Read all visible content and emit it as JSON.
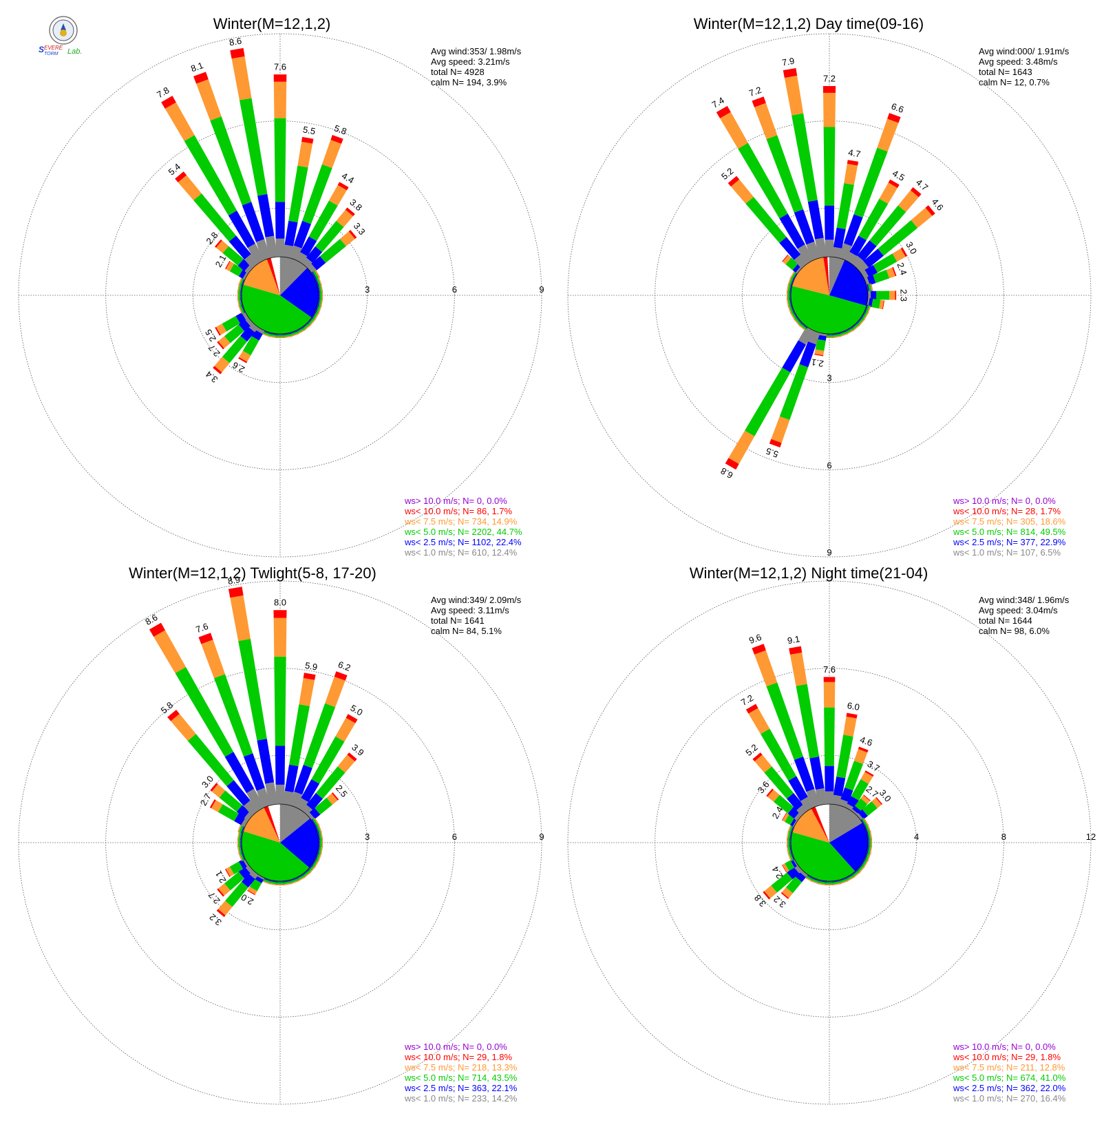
{
  "colors": {
    "ws_gt10": "#9400d3",
    "ws_lt10": "#ff0000",
    "ws_lt75": "#ff9933",
    "ws_lt5": "#00cc00",
    "ws_lt25": "#0000ff",
    "ws_lt1": "#888888",
    "grid": "#555555"
  },
  "logo_text": "Severe Storm Lab.",
  "chart_data": [
    {
      "type": "windrose",
      "title": "Winter(M=12,1,2)",
      "stats": [
        "Avg wind:353/ 1.98m/s",
        "Avg speed: 3.21m/s",
        "total N=        4928",
        "calm N=     194,   3.9%"
      ],
      "ring_labels": [
        "3",
        "6",
        "9"
      ],
      "rmax": 9,
      "label_pos": "east",
      "center_pie": [
        {
          "class": "ws_lt1",
          "percent": 12.4
        },
        {
          "class": "ws_lt25",
          "percent": 22.4
        },
        {
          "class": "ws_lt5",
          "percent": 44.7
        },
        {
          "class": "ws_lt75",
          "percent": 14.9
        },
        {
          "class": "ws_lt10",
          "percent": 1.7
        },
        {
          "class": "ws_gt10",
          "percent": 0.0
        }
      ],
      "legend": [
        {
          "class": "ws_gt10",
          "text": "ws> 10.0 m/s; N=      0,   0.0%"
        },
        {
          "class": "ws_lt10",
          "text": "ws< 10.0 m/s; N=     86,   1.7%"
        },
        {
          "class": "ws_lt75",
          "text": "ws<  7.5 m/s; N=    734, 14.9%"
        },
        {
          "class": "ws_lt5",
          "text": "ws<  5.0 m/s; N=  2202, 44.7%"
        },
        {
          "class": "ws_lt25",
          "text": "ws<  2.5 m/s; N=  1102, 22.4%"
        },
        {
          "class": "ws_lt1",
          "text": "ws<  1.0 m/s; N=    610, 12.4%"
        }
      ],
      "sectors": [
        {
          "dir": 0,
          "value": 7.6,
          "label": "7.6"
        },
        {
          "dir": 10,
          "value": 5.5,
          "label": "5.5"
        },
        {
          "dir": 20,
          "value": 5.8,
          "label": "5.8"
        },
        {
          "dir": 30,
          "value": 4.4,
          "label": "4.4"
        },
        {
          "dir": 40,
          "value": 3.8,
          "label": "3.8"
        },
        {
          "dir": 50,
          "value": 3.3,
          "label": "3.3"
        },
        {
          "dir": 60,
          "value": 1.5,
          "label": ""
        },
        {
          "dir": 70,
          "value": 1.1,
          "label": ""
        },
        {
          "dir": 80,
          "value": 0.9,
          "label": ""
        },
        {
          "dir": 90,
          "value": 0.9,
          "label": ""
        },
        {
          "dir": 100,
          "value": 0.8,
          "label": ""
        },
        {
          "dir": 110,
          "value": 0.8,
          "label": ""
        },
        {
          "dir": 120,
          "value": 0.8,
          "label": ""
        },
        {
          "dir": 130,
          "value": 0.8,
          "label": ""
        },
        {
          "dir": 140,
          "value": 0.8,
          "label": ""
        },
        {
          "dir": 150,
          "value": 0.8,
          "label": ""
        },
        {
          "dir": 160,
          "value": 0.8,
          "label": ""
        },
        {
          "dir": 170,
          "value": 0.8,
          "label": ""
        },
        {
          "dir": 180,
          "value": 0.8,
          "label": ""
        },
        {
          "dir": 190,
          "value": 0.9,
          "label": ""
        },
        {
          "dir": 200,
          "value": 1.1,
          "label": ""
        },
        {
          "dir": 210,
          "value": 2.6,
          "label": "2.6"
        },
        {
          "dir": 220,
          "value": 3.4,
          "label": "3.4"
        },
        {
          "dir": 230,
          "value": 2.7,
          "label": "2.7"
        },
        {
          "dir": 240,
          "value": 2.5,
          "label": "2.5"
        },
        {
          "dir": 250,
          "value": 1.3,
          "label": ""
        },
        {
          "dir": 260,
          "value": 1.0,
          "label": ""
        },
        {
          "dir": 270,
          "value": 1.1,
          "label": ""
        },
        {
          "dir": 280,
          "value": 1.1,
          "label": ""
        },
        {
          "dir": 290,
          "value": 1.3,
          "label": ""
        },
        {
          "dir": 300,
          "value": 2.1,
          "label": "2.1"
        },
        {
          "dir": 310,
          "value": 2.8,
          "label": "2.8"
        },
        {
          "dir": 320,
          "value": 5.4,
          "label": "5.4"
        },
        {
          "dir": 330,
          "value": 7.8,
          "label": "7.8"
        },
        {
          "dir": 340,
          "value": 8.1,
          "label": "8.1"
        },
        {
          "dir": 350,
          "value": 8.6,
          "label": "8.6"
        }
      ]
    },
    {
      "type": "windrose",
      "title": "Winter(M=12,1,2) Day time(09-16)",
      "stats": [
        "Avg wind:000/ 1.91m/s",
        "Avg speed: 3.48m/s",
        "total N=        1643",
        "calm N=      12,   0.7%"
      ],
      "ring_labels": [
        "3",
        "6",
        "9"
      ],
      "rmax": 9,
      "label_pos": "south",
      "center_pie": [
        {
          "class": "ws_lt1",
          "percent": 6.5
        },
        {
          "class": "ws_lt25",
          "percent": 22.9
        },
        {
          "class": "ws_lt5",
          "percent": 49.5
        },
        {
          "class": "ws_lt75",
          "percent": 18.6
        },
        {
          "class": "ws_lt10",
          "percent": 1.7
        },
        {
          "class": "ws_gt10",
          "percent": 0.0
        }
      ],
      "legend": [
        {
          "class": "ws_gt10",
          "text": "ws> 10.0 m/s; N=      0,   0.0%"
        },
        {
          "class": "ws_lt10",
          "text": "ws< 10.0 m/s; N=     28,   1.7%"
        },
        {
          "class": "ws_lt75",
          "text": "ws<  7.5 m/s; N=    305, 18.6%"
        },
        {
          "class": "ws_lt5",
          "text": "ws<  5.0 m/s; N=    814, 49.5%"
        },
        {
          "class": "ws_lt25",
          "text": "ws<  2.5 m/s; N=    377, 22.9%"
        },
        {
          "class": "ws_lt1",
          "text": "ws<  1.0 m/s; N=    107,   6.5%"
        }
      ],
      "sectors": [
        {
          "dir": 0,
          "value": 7.2,
          "label": "7.2"
        },
        {
          "dir": 10,
          "value": 4.7,
          "label": "4.7"
        },
        {
          "dir": 20,
          "value": 6.6,
          "label": "6.6"
        },
        {
          "dir": 30,
          "value": 4.5,
          "label": "4.5"
        },
        {
          "dir": 40,
          "value": 4.7,
          "label": "4.7"
        },
        {
          "dir": 50,
          "value": 4.6,
          "label": "4.6"
        },
        {
          "dir": 60,
          "value": 3.0,
          "label": "3.0"
        },
        {
          "dir": 70,
          "value": 2.4,
          "label": "2.4"
        },
        {
          "dir": 80,
          "value": 1.5,
          "label": ""
        },
        {
          "dir": 90,
          "value": 2.3,
          "label": "2.3"
        },
        {
          "dir": 100,
          "value": 1.9,
          "label": ""
        },
        {
          "dir": 110,
          "value": 1.4,
          "label": ""
        },
        {
          "dir": 120,
          "value": 1.2,
          "label": ""
        },
        {
          "dir": 130,
          "value": 1.1,
          "label": ""
        },
        {
          "dir": 140,
          "value": 1.0,
          "label": ""
        },
        {
          "dir": 150,
          "value": 0.9,
          "label": ""
        },
        {
          "dir": 160,
          "value": 0.9,
          "label": ""
        },
        {
          "dir": 170,
          "value": 1.0,
          "label": ""
        },
        {
          "dir": 180,
          "value": 1.0,
          "label": ""
        },
        {
          "dir": 190,
          "value": 2.1,
          "label": "2.1"
        },
        {
          "dir": 200,
          "value": 5.5,
          "label": "5.5"
        },
        {
          "dir": 210,
          "value": 6.8,
          "label": "6.8"
        },
        {
          "dir": 220,
          "value": 1.4,
          "label": ""
        },
        {
          "dir": 230,
          "value": 0.9,
          "label": ""
        },
        {
          "dir": 240,
          "value": 0.8,
          "label": ""
        },
        {
          "dir": 250,
          "value": 0.7,
          "label": ""
        },
        {
          "dir": 260,
          "value": 0.7,
          "label": ""
        },
        {
          "dir": 270,
          "value": 0.7,
          "label": ""
        },
        {
          "dir": 280,
          "value": 0.8,
          "label": ""
        },
        {
          "dir": 290,
          "value": 0.9,
          "label": ""
        },
        {
          "dir": 300,
          "value": 1.4,
          "label": ""
        },
        {
          "dir": 310,
          "value": 2.0,
          "label": ""
        },
        {
          "dir": 320,
          "value": 5.2,
          "label": "5.2"
        },
        {
          "dir": 330,
          "value": 7.4,
          "label": "7.4"
        },
        {
          "dir": 340,
          "value": 7.2,
          "label": "7.2"
        },
        {
          "dir": 350,
          "value": 7.9,
          "label": "7.9"
        }
      ]
    },
    {
      "type": "windrose",
      "title": "Winter(M=12,1,2) Twlight(5-8, 17-20)",
      "stats": [
        "Avg wind:349/ 2.09m/s",
        "Avg speed: 3.11m/s",
        "total N=        1641",
        "calm N=      84,   5.1%"
      ],
      "ring_labels": [
        "3",
        "6",
        "9"
      ],
      "rmax": 9,
      "label_pos": "east",
      "center_pie": [
        {
          "class": "ws_lt1",
          "percent": 14.2
        },
        {
          "class": "ws_lt25",
          "percent": 22.1
        },
        {
          "class": "ws_lt5",
          "percent": 43.5
        },
        {
          "class": "ws_lt75",
          "percent": 13.3
        },
        {
          "class": "ws_lt10",
          "percent": 1.8
        },
        {
          "class": "ws_gt10",
          "percent": 0.0
        }
      ],
      "legend": [
        {
          "class": "ws_gt10",
          "text": "ws> 10.0 m/s; N=      0,   0.0%"
        },
        {
          "class": "ws_lt10",
          "text": "ws< 10.0 m/s; N=     29,   1.8%"
        },
        {
          "class": "ws_lt75",
          "text": "ws<  7.5 m/s; N=    218, 13.3%"
        },
        {
          "class": "ws_lt5",
          "text": "ws<  5.0 m/s; N=    714, 43.5%"
        },
        {
          "class": "ws_lt25",
          "text": "ws<  2.5 m/s; N=    363, 22.1%"
        },
        {
          "class": "ws_lt1",
          "text": "ws<  1.0 m/s; N=    233, 14.2%"
        }
      ],
      "sectors": [
        {
          "dir": 0,
          "value": 8.0,
          "label": "8.0"
        },
        {
          "dir": 10,
          "value": 5.9,
          "label": "5.9"
        },
        {
          "dir": 20,
          "value": 6.2,
          "label": "6.2"
        },
        {
          "dir": 30,
          "value": 5.0,
          "label": "5.0"
        },
        {
          "dir": 40,
          "value": 3.9,
          "label": "3.9"
        },
        {
          "dir": 50,
          "value": 2.5,
          "label": "2.5"
        },
        {
          "dir": 60,
          "value": 1.3,
          "label": ""
        },
        {
          "dir": 70,
          "value": 0.9,
          "label": ""
        },
        {
          "dir": 80,
          "value": 0.8,
          "label": ""
        },
        {
          "dir": 90,
          "value": 0.9,
          "label": ""
        },
        {
          "dir": 100,
          "value": 0.8,
          "label": ""
        },
        {
          "dir": 110,
          "value": 0.8,
          "label": ""
        },
        {
          "dir": 120,
          "value": 0.8,
          "label": ""
        },
        {
          "dir": 130,
          "value": 0.8,
          "label": ""
        },
        {
          "dir": 140,
          "value": 0.8,
          "label": ""
        },
        {
          "dir": 150,
          "value": 0.8,
          "label": ""
        },
        {
          "dir": 160,
          "value": 0.8,
          "label": ""
        },
        {
          "dir": 170,
          "value": 0.8,
          "label": ""
        },
        {
          "dir": 180,
          "value": 0.9,
          "label": ""
        },
        {
          "dir": 190,
          "value": 1.0,
          "label": ""
        },
        {
          "dir": 200,
          "value": 1.2,
          "label": ""
        },
        {
          "dir": 210,
          "value": 2.0,
          "label": "2.0"
        },
        {
          "dir": 220,
          "value": 3.2,
          "label": "3.2"
        },
        {
          "dir": 230,
          "value": 2.7,
          "label": "2.7"
        },
        {
          "dir": 240,
          "value": 2.1,
          "label": "2.1"
        },
        {
          "dir": 250,
          "value": 1.2,
          "label": ""
        },
        {
          "dir": 260,
          "value": 1.0,
          "label": ""
        },
        {
          "dir": 270,
          "value": 1.1,
          "label": ""
        },
        {
          "dir": 280,
          "value": 1.2,
          "label": ""
        },
        {
          "dir": 290,
          "value": 1.5,
          "label": ""
        },
        {
          "dir": 300,
          "value": 2.7,
          "label": "2.7"
        },
        {
          "dir": 310,
          "value": 3.0,
          "label": "3.0"
        },
        {
          "dir": 320,
          "value": 5.8,
          "label": "5.8"
        },
        {
          "dir": 330,
          "value": 8.6,
          "label": "8.6"
        },
        {
          "dir": 340,
          "value": 7.6,
          "label": "7.6"
        },
        {
          "dir": 350,
          "value": 8.9,
          "label": "8.9"
        }
      ]
    },
    {
      "type": "windrose",
      "title": "Winter(M=12,1,2) Night time(21-04)",
      "stats": [
        "Avg wind:348/ 1.96m/s",
        "Avg speed: 3.04m/s",
        "total N=        1644",
        "calm N=      98,   6.0%"
      ],
      "ring_labels": [
        "4",
        "8",
        "12"
      ],
      "rmax": 12,
      "label_pos": "east",
      "center_pie": [
        {
          "class": "ws_lt1",
          "percent": 16.4
        },
        {
          "class": "ws_lt25",
          "percent": 22.0
        },
        {
          "class": "ws_lt5",
          "percent": 41.0
        },
        {
          "class": "ws_lt75",
          "percent": 12.8
        },
        {
          "class": "ws_lt10",
          "percent": 1.8
        },
        {
          "class": "ws_gt10",
          "percent": 0.0
        }
      ],
      "legend": [
        {
          "class": "ws_gt10",
          "text": "ws> 10.0 m/s; N=      0,   0.0%"
        },
        {
          "class": "ws_lt10",
          "text": "ws< 10.0 m/s; N=     29,   1.8%"
        },
        {
          "class": "ws_lt75",
          "text": "ws<  7.5 m/s; N=    211, 12.8%"
        },
        {
          "class": "ws_lt5",
          "text": "ws<  5.0 m/s; N=    674, 41.0%"
        },
        {
          "class": "ws_lt25",
          "text": "ws<  2.5 m/s; N=    362, 22.0%"
        },
        {
          "class": "ws_lt1",
          "text": "ws<  1.0 m/s; N=    270, 16.4%"
        }
      ],
      "sectors": [
        {
          "dir": 0,
          "value": 7.6,
          "label": "7.6"
        },
        {
          "dir": 10,
          "value": 6.0,
          "label": "6.0"
        },
        {
          "dir": 20,
          "value": 4.6,
          "label": "4.6"
        },
        {
          "dir": 30,
          "value": 3.7,
          "label": "3.7"
        },
        {
          "dir": 40,
          "value": 2.7,
          "label": "2.7"
        },
        {
          "dir": 50,
          "value": 3.0,
          "label": "3.0"
        },
        {
          "dir": 60,
          "value": 1.9,
          "label": ""
        },
        {
          "dir": 70,
          "value": 1.5,
          "label": ""
        },
        {
          "dir": 80,
          "value": 1.2,
          "label": ""
        },
        {
          "dir": 90,
          "value": 1.0,
          "label": ""
        },
        {
          "dir": 100,
          "value": 1.0,
          "label": ""
        },
        {
          "dir": 110,
          "value": 1.0,
          "label": ""
        },
        {
          "dir": 120,
          "value": 0.9,
          "label": ""
        },
        {
          "dir": 130,
          "value": 0.9,
          "label": ""
        },
        {
          "dir": 140,
          "value": 0.9,
          "label": ""
        },
        {
          "dir": 150,
          "value": 0.9,
          "label": ""
        },
        {
          "dir": 160,
          "value": 0.9,
          "label": ""
        },
        {
          "dir": 170,
          "value": 0.9,
          "label": ""
        },
        {
          "dir": 180,
          "value": 0.9,
          "label": ""
        },
        {
          "dir": 190,
          "value": 1.0,
          "label": ""
        },
        {
          "dir": 200,
          "value": 1.2,
          "label": ""
        },
        {
          "dir": 210,
          "value": 1.4,
          "label": ""
        },
        {
          "dir": 220,
          "value": 3.2,
          "label": "3.2"
        },
        {
          "dir": 230,
          "value": 3.8,
          "label": "3.8"
        },
        {
          "dir": 240,
          "value": 2.4,
          "label": "2.4"
        },
        {
          "dir": 250,
          "value": 1.5,
          "label": ""
        },
        {
          "dir": 260,
          "value": 1.3,
          "label": ""
        },
        {
          "dir": 270,
          "value": 1.4,
          "label": ""
        },
        {
          "dir": 280,
          "value": 1.6,
          "label": ""
        },
        {
          "dir": 290,
          "value": 1.9,
          "label": ""
        },
        {
          "dir": 300,
          "value": 2.4,
          "label": "2.4"
        },
        {
          "dir": 310,
          "value": 3.6,
          "label": "3.6"
        },
        {
          "dir": 320,
          "value": 5.2,
          "label": "5.2"
        },
        {
          "dir": 330,
          "value": 7.2,
          "label": "7.2"
        },
        {
          "dir": 340,
          "value": 9.6,
          "label": "9.6"
        },
        {
          "dir": 350,
          "value": 9.1,
          "label": "9.1"
        }
      ]
    }
  ]
}
